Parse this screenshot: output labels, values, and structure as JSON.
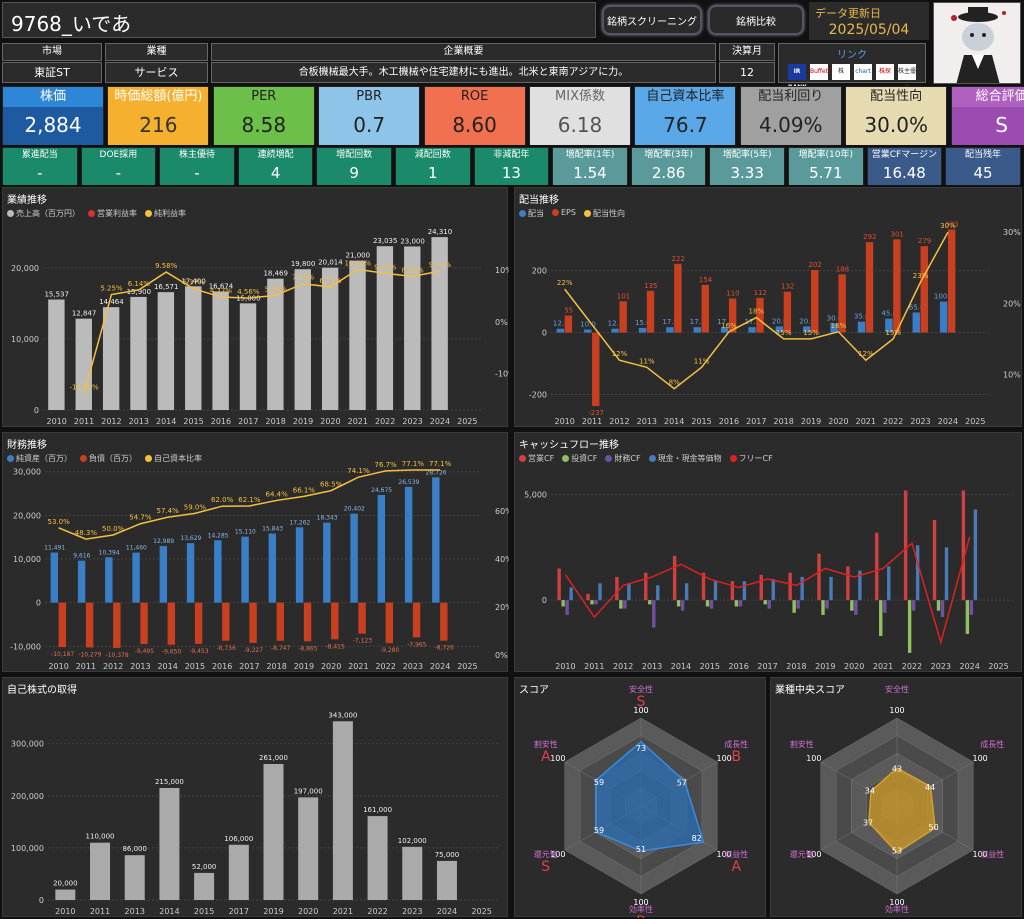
{
  "header": {
    "title": "9768_いであ",
    "btn_screening": "銘柄スクリーニング",
    "btn_compare": "銘柄比較",
    "update_label": "データ更新日",
    "update_date": "2025/05/04"
  },
  "info": {
    "market_h": "市場",
    "market_v": "東証ST",
    "industry_h": "業種",
    "industry_v": "サービス",
    "summary_h": "企業概要",
    "summary_v": "合板機械最大手。木工機械や住宅建材にも進出。北米と東南アジアに力。",
    "fy_h": "決算月",
    "fy_v": "12",
    "link_h": "リンク",
    "link_icons": [
      "IR BANK",
      "Buffett",
      "株",
      "chart",
      "株探",
      "株主優待"
    ]
  },
  "kpis": [
    {
      "h": "株価",
      "v": "2,884",
      "hbg": "#2e86d6",
      "vbg": "#1d5aa0",
      "hc": "#fff",
      "vc": "#fff"
    },
    {
      "h": "時価総額(億円)",
      "v": "216",
      "hbg": "#f5b030",
      "vbg": "#f5b030",
      "hc": "#fff",
      "vc": "#333"
    },
    {
      "h": "PER",
      "v": "8.58",
      "hbg": "#6cc04a",
      "vbg": "#6cc04a",
      "hc": "#222",
      "vc": "#222"
    },
    {
      "h": "PBR",
      "v": "0.7",
      "hbg": "#8ec4e8",
      "vbg": "#8ec4e8",
      "hc": "#222",
      "vc": "#222"
    },
    {
      "h": "ROE",
      "v": "8.60",
      "hbg": "#f07050",
      "vbg": "#f07050",
      "hc": "#222",
      "vc": "#222"
    },
    {
      "h": "MIX係数",
      "v": "6.18",
      "hbg": "#e0e0e0",
      "vbg": "#e0e0e0",
      "hc": "#666",
      "vc": "#555"
    },
    {
      "h": "自己資本比率",
      "v": "76.7",
      "hbg": "#5aa8e8",
      "vbg": "#5aa8e8",
      "hc": "#222",
      "vc": "#222"
    },
    {
      "h": "配当利回り",
      "v": "4.09%",
      "hbg": "#a0a0a0",
      "vbg": "#a0a0a0",
      "hc": "#222",
      "vc": "#222"
    },
    {
      "h": "配当性向",
      "v": "30.0%",
      "hbg": "#e6dbb0",
      "vbg": "#e6dbb0",
      "hc": "#222",
      "vc": "#222"
    },
    {
      "h": "総合評価",
      "v": "S",
      "hbg": "#b060c0",
      "vbg": "#9a4cb0",
      "hc": "#fff",
      "vc": "#fff"
    }
  ],
  "stats": [
    {
      "h": "累進配当",
      "v": "-",
      "bg": "#1a8a6a"
    },
    {
      "h": "DOE採用",
      "v": "-",
      "bg": "#1a8a6a"
    },
    {
      "h": "株主優待",
      "v": "-",
      "bg": "#1a8a6a"
    },
    {
      "h": "連続増配",
      "v": "4",
      "bg": "#1a8a6a"
    },
    {
      "h": "増配回数",
      "v": "9",
      "bg": "#1a8a6a"
    },
    {
      "h": "減配回数",
      "v": "1",
      "bg": "#1a8a6a"
    },
    {
      "h": "非減配年",
      "v": "13",
      "bg": "#1a8a6a"
    },
    {
      "h": "増配率(1年)",
      "v": "1.54",
      "bg": "#5a9a9a"
    },
    {
      "h": "増配率(3年)",
      "v": "2.86",
      "bg": "#5a9a9a"
    },
    {
      "h": "増配率(5年)",
      "v": "3.33",
      "bg": "#5a9a9a"
    },
    {
      "h": "増配率(10年)",
      "v": "5.71",
      "bg": "#5a9a9a"
    },
    {
      "h": "営業CFマージン",
      "v": "16.48",
      "bg": "#3a5a8a"
    },
    {
      "h": "配当残年",
      "v": "45",
      "bg": "#3a5a8a"
    }
  ],
  "panels": {
    "perf": "業績推移",
    "div": "配当推移",
    "fin": "財務推移",
    "cf": "キャッシュフロー推移",
    "buyback": "自己株式の取得",
    "score": "スコア",
    "ind_score": "業種中央スコア"
  },
  "chart_data": [
    {
      "type": "bar",
      "title": "業績推移",
      "categories": [
        "2010",
        "2011",
        "2012",
        "2013",
        "2014",
        "2015",
        "2016",
        "2017",
        "2018",
        "2019",
        "2020",
        "2021",
        "2022",
        "2023",
        "2024",
        "2025"
      ],
      "series": [
        {
          "name": "売上高（百万円）",
          "values": [
            15537,
            12847,
            14464,
            15900,
            16571,
            17400,
            16674,
            15000,
            18469,
            19800,
            20014,
            21000,
            23035,
            23000,
            24310,
            null
          ],
          "color": "#bbbbbb"
        },
        {
          "name": "営業利益率",
          "values": [
            null,
            null,
            null,
            null,
            null,
            null,
            null,
            null,
            null,
            null,
            null,
            null,
            null,
            null,
            null,
            null
          ],
          "color": "#d93030"
        },
        {
          "name": "純利益率",
          "values": [
            null,
            -13.82,
            5.25,
            6.14,
            9.58,
            6.37,
            4.77,
            4.56,
            5.09,
            7.33,
            6.72,
            10.1,
            9.33,
            8.76,
            9.77,
            null
          ],
          "color": "#f5c040"
        }
      ],
      "ylim": [
        0,
        27000
      ],
      "y2lim": [
        -17,
        20
      ]
    },
    {
      "type": "bar",
      "title": "配当推移",
      "categories": [
        "2010",
        "2011",
        "2012",
        "2013",
        "2014",
        "2015",
        "2016",
        "2017",
        "2018",
        "2019",
        "2020",
        "2021",
        "2022",
        "2023",
        "2024",
        "2025"
      ],
      "series": [
        {
          "name": "配当",
          "values": [
            12.5,
            10.0,
            12.5,
            15.0,
            17.5,
            17.5,
            17.5,
            17.5,
            20.0,
            20.0,
            30.0,
            35.0,
            45.0,
            65.0,
            100.0,
            null
          ],
          "color": "#3a7ec8"
        },
        {
          "name": "EPS",
          "values": [
            55,
            -237,
            101,
            135,
            222,
            154,
            110,
            112,
            132,
            202,
            188,
            292,
            301,
            279,
            333,
            null
          ],
          "color": "#c84020"
        },
        {
          "name": "配当性向",
          "values": [
            22,
            null,
            12,
            11,
            8,
            11,
            16,
            18,
            15,
            15,
            16,
            12,
            15,
            23,
            30,
            null
          ],
          "color": "#f5c040"
        }
      ],
      "ylim": [
        -250,
        370
      ],
      "y2lim": [
        5,
        32
      ]
    },
    {
      "type": "bar",
      "title": "財務推移",
      "categories": [
        "2010",
        "2011",
        "2012",
        "2013",
        "2014",
        "2015",
        "2016",
        "2017",
        "2018",
        "2019",
        "2020",
        "2021",
        "2022",
        "2023",
        "2024",
        "2025"
      ],
      "series": [
        {
          "name": "純資産（百万）",
          "values": [
            11491,
            9616,
            10394,
            11460,
            12989,
            13629,
            14285,
            15110,
            15843,
            17262,
            18343,
            20402,
            24675,
            26539,
            28726,
            null
          ],
          "color": "#3a7ec8"
        },
        {
          "name": "負債（百万）",
          "values": [
            -10187,
            -10279,
            -10378,
            -9495,
            -9650,
            -9453,
            -8736,
            -9227,
            -8747,
            -8865,
            -8415,
            -7123,
            -9280,
            -7965,
            -8726,
            null
          ],
          "color": "#c84020"
        },
        {
          "name": "自己資本比率",
          "values": [
            53.0,
            48.3,
            50.0,
            54.7,
            57.4,
            59.0,
            62.0,
            62.1,
            64.4,
            66.1,
            68.5,
            74.1,
            76.7,
            77.1,
            77.1,
            null
          ],
          "color": "#f5c040"
        }
      ],
      "ylim": [
        -12000,
        32000
      ],
      "y2lim": [
        0,
        80
      ]
    },
    {
      "type": "bar",
      "title": "キャッシュフロー推移",
      "categories": [
        "2010",
        "2011",
        "2012",
        "2013",
        "2014",
        "2015",
        "2016",
        "2017",
        "2018",
        "2019",
        "2020",
        "2021",
        "2022",
        "2023",
        "2024",
        "2025"
      ],
      "series": [
        {
          "name": "営業CF",
          "values": [
            1500,
            300,
            1100,
            1300,
            2100,
            1300,
            900,
            1200,
            1300,
            2200,
            1600,
            3200,
            5200,
            3800,
            5200,
            null
          ],
          "color": "#d04040"
        },
        {
          "name": "投資CF",
          "values": [
            -300,
            -200,
            -400,
            -200,
            -300,
            -300,
            -300,
            -200,
            -600,
            -700,
            -500,
            -1700,
            -2500,
            -500,
            -1600,
            null
          ],
          "color": "#90c060"
        },
        {
          "name": "財務CF",
          "values": [
            -700,
            -200,
            -400,
            -1300,
            -500,
            -400,
            -300,
            -400,
            -400,
            -400,
            -700,
            -600,
            -500,
            -800,
            -700,
            null
          ],
          "color": "#7050a0"
        },
        {
          "name": "現金・現金等価物",
          "values": [
            600,
            800,
            800,
            700,
            800,
            900,
            900,
            1000,
            1100,
            1100,
            1400,
            1600,
            2600,
            2500,
            4300,
            null
          ],
          "color": "#4a7ab8"
        },
        {
          "name": "フリーCF",
          "values": [
            1200,
            -800,
            700,
            1100,
            1700,
            1000,
            600,
            1000,
            700,
            1500,
            1100,
            1500,
            2700,
            -2000,
            3000,
            null
          ],
          "color": "#e02020"
        }
      ],
      "ylim": [
        -2600,
        6500
      ]
    },
    {
      "type": "bar",
      "title": "自己株式の取得",
      "categories": [
        "2010",
        "2011",
        "2013",
        "2014",
        "2015",
        "2017",
        "2019",
        "2020",
        "2021",
        "2022",
        "2023",
        "2024",
        "2025"
      ],
      "values": [
        20000,
        110000,
        86000,
        215000,
        52000,
        106000,
        261000,
        197000,
        343000,
        161000,
        102000,
        75000,
        null
      ],
      "ylim": [
        0,
        380000
      ]
    },
    {
      "type": "radar",
      "title": "スコア",
      "axes": [
        "安全性",
        "成長性",
        "収益性",
        "効率性",
        "還元性",
        "割安性"
      ],
      "values": [
        73,
        57,
        82,
        51,
        59,
        59
      ],
      "grades": [
        "S",
        "B",
        "A",
        "B",
        "S",
        "A"
      ],
      "max": 100
    },
    {
      "type": "radar",
      "title": "業種中央スコア",
      "axes": [
        "安全性",
        "成長性",
        "収益性",
        "効率性",
        "還元性",
        "割安性"
      ],
      "values": [
        43,
        44,
        50,
        53,
        37,
        34
      ],
      "max": 100
    }
  ]
}
